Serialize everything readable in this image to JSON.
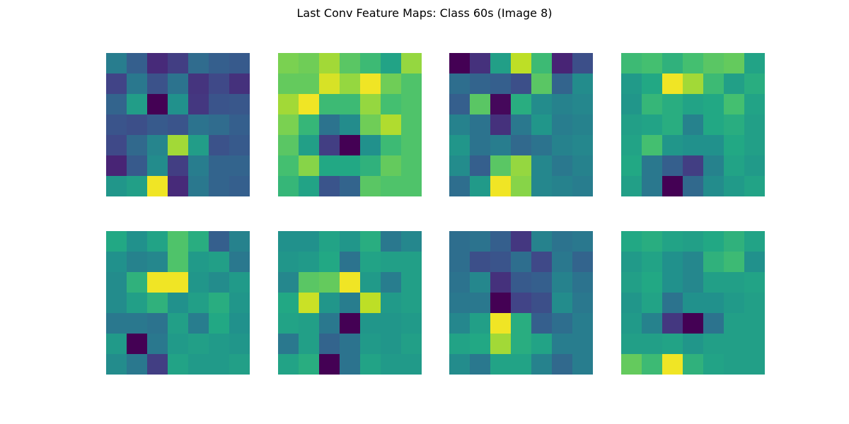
{
  "figure": {
    "title": "Last Conv Feature Maps: Class 60s (Image 8)"
  },
  "chart_data": {
    "type": "heatmap",
    "title": "Last Conv Feature Maps: Class 60s (Image 8)",
    "colormap": "viridis",
    "axes_visible": false,
    "grid": false,
    "layout": {
      "rows": 2,
      "cols": 4
    },
    "value_range": [
      0,
      1
    ],
    "maps": [
      {
        "values": [
          [
            0.42,
            0.3,
            0.12,
            0.18,
            0.35,
            0.3,
            0.28
          ],
          [
            0.2,
            0.4,
            0.25,
            0.38,
            0.15,
            0.22,
            0.14
          ],
          [
            0.32,
            0.55,
            0.0,
            0.5,
            0.16,
            0.26,
            0.27
          ],
          [
            0.26,
            0.24,
            0.28,
            0.26,
            0.38,
            0.35,
            0.3
          ],
          [
            0.22,
            0.34,
            0.45,
            0.86,
            0.55,
            0.25,
            0.28
          ],
          [
            0.1,
            0.28,
            0.48,
            0.18,
            0.42,
            0.32,
            0.32
          ],
          [
            0.52,
            0.56,
            0.98,
            0.12,
            0.4,
            0.32,
            0.3
          ]
        ]
      },
      {
        "values": [
          [
            0.8,
            0.78,
            0.86,
            0.74,
            0.68,
            0.58,
            0.84
          ],
          [
            0.76,
            0.76,
            0.94,
            0.84,
            0.98,
            0.78,
            0.72
          ],
          [
            0.86,
            0.98,
            0.68,
            0.68,
            0.84,
            0.7,
            0.72
          ],
          [
            0.8,
            0.66,
            0.38,
            0.48,
            0.78,
            0.88,
            0.72
          ],
          [
            0.74,
            0.56,
            0.18,
            0.0,
            0.5,
            0.68,
            0.72
          ],
          [
            0.7,
            0.82,
            0.6,
            0.6,
            0.64,
            0.76,
            0.72
          ],
          [
            0.66,
            0.58,
            0.26,
            0.32,
            0.74,
            0.72,
            0.72
          ]
        ]
      },
      {
        "values": [
          [
            0.0,
            0.14,
            0.56,
            0.9,
            0.68,
            0.1,
            0.24
          ],
          [
            0.36,
            0.32,
            0.3,
            0.24,
            0.74,
            0.32,
            0.48
          ],
          [
            0.3,
            0.74,
            0.02,
            0.62,
            0.48,
            0.44,
            0.46
          ],
          [
            0.44,
            0.38,
            0.14,
            0.4,
            0.52,
            0.42,
            0.44
          ],
          [
            0.52,
            0.38,
            0.42,
            0.34,
            0.38,
            0.44,
            0.46
          ],
          [
            0.48,
            0.3,
            0.74,
            0.84,
            0.46,
            0.4,
            0.44
          ],
          [
            0.36,
            0.54,
            0.98,
            0.82,
            0.46,
            0.44,
            0.42
          ]
        ]
      },
      {
        "values": [
          [
            0.68,
            0.7,
            0.64,
            0.7,
            0.74,
            0.76,
            0.58
          ],
          [
            0.54,
            0.6,
            0.98,
            0.86,
            0.68,
            0.56,
            0.62
          ],
          [
            0.52,
            0.66,
            0.62,
            0.58,
            0.6,
            0.7,
            0.58
          ],
          [
            0.56,
            0.58,
            0.62,
            0.44,
            0.6,
            0.62,
            0.56
          ],
          [
            0.58,
            0.7,
            0.52,
            0.5,
            0.5,
            0.6,
            0.56
          ],
          [
            0.6,
            0.4,
            0.3,
            0.18,
            0.44,
            0.58,
            0.54
          ],
          [
            0.56,
            0.4,
            0.0,
            0.34,
            0.48,
            0.54,
            0.58
          ]
        ]
      },
      {
        "values": [
          [
            0.6,
            0.5,
            0.58,
            0.72,
            0.62,
            0.3,
            0.44
          ],
          [
            0.5,
            0.44,
            0.46,
            0.72,
            0.54,
            0.56,
            0.4
          ],
          [
            0.48,
            0.64,
            0.98,
            0.98,
            0.52,
            0.48,
            0.54
          ],
          [
            0.48,
            0.56,
            0.64,
            0.5,
            0.56,
            0.62,
            0.52
          ],
          [
            0.4,
            0.4,
            0.38,
            0.56,
            0.42,
            0.6,
            0.5
          ],
          [
            0.54,
            0.0,
            0.4,
            0.54,
            0.56,
            0.54,
            0.52
          ],
          [
            0.48,
            0.4,
            0.18,
            0.58,
            0.54,
            0.54,
            0.56
          ]
        ]
      },
      {
        "values": [
          [
            0.5,
            0.5,
            0.58,
            0.52,
            0.62,
            0.4,
            0.46
          ],
          [
            0.52,
            0.54,
            0.6,
            0.38,
            0.58,
            0.56,
            0.56
          ],
          [
            0.46,
            0.74,
            0.76,
            0.98,
            0.54,
            0.42,
            0.56
          ],
          [
            0.6,
            0.92,
            0.52,
            0.42,
            0.9,
            0.54,
            0.56
          ],
          [
            0.58,
            0.56,
            0.4,
            0.0,
            0.52,
            0.52,
            0.54
          ],
          [
            0.4,
            0.56,
            0.32,
            0.38,
            0.54,
            0.52,
            0.56
          ],
          [
            0.58,
            0.62,
            0.0,
            0.38,
            0.58,
            0.54,
            0.54
          ]
        ]
      },
      {
        "values": [
          [
            0.36,
            0.38,
            0.3,
            0.16,
            0.44,
            0.38,
            0.4
          ],
          [
            0.36,
            0.24,
            0.26,
            0.36,
            0.22,
            0.4,
            0.32
          ],
          [
            0.38,
            0.46,
            0.14,
            0.28,
            0.3,
            0.44,
            0.38
          ],
          [
            0.4,
            0.4,
            0.0,
            0.2,
            0.24,
            0.48,
            0.4
          ],
          [
            0.46,
            0.56,
            0.98,
            0.62,
            0.3,
            0.36,
            0.42
          ],
          [
            0.58,
            0.6,
            0.86,
            0.62,
            0.58,
            0.42,
            0.42
          ],
          [
            0.48,
            0.4,
            0.58,
            0.58,
            0.44,
            0.34,
            0.42
          ]
        ]
      },
      {
        "values": [
          [
            0.6,
            0.62,
            0.58,
            0.56,
            0.6,
            0.64,
            0.58
          ],
          [
            0.54,
            0.58,
            0.5,
            0.46,
            0.64,
            0.68,
            0.5
          ],
          [
            0.56,
            0.6,
            0.5,
            0.46,
            0.56,
            0.56,
            0.58
          ],
          [
            0.52,
            0.58,
            0.38,
            0.5,
            0.5,
            0.54,
            0.56
          ],
          [
            0.54,
            0.44,
            0.16,
            0.0,
            0.38,
            0.56,
            0.56
          ],
          [
            0.56,
            0.56,
            0.58,
            0.52,
            0.56,
            0.56,
            0.56
          ],
          [
            0.76,
            0.68,
            0.98,
            0.64,
            0.58,
            0.56,
            0.56
          ]
        ]
      }
    ]
  }
}
